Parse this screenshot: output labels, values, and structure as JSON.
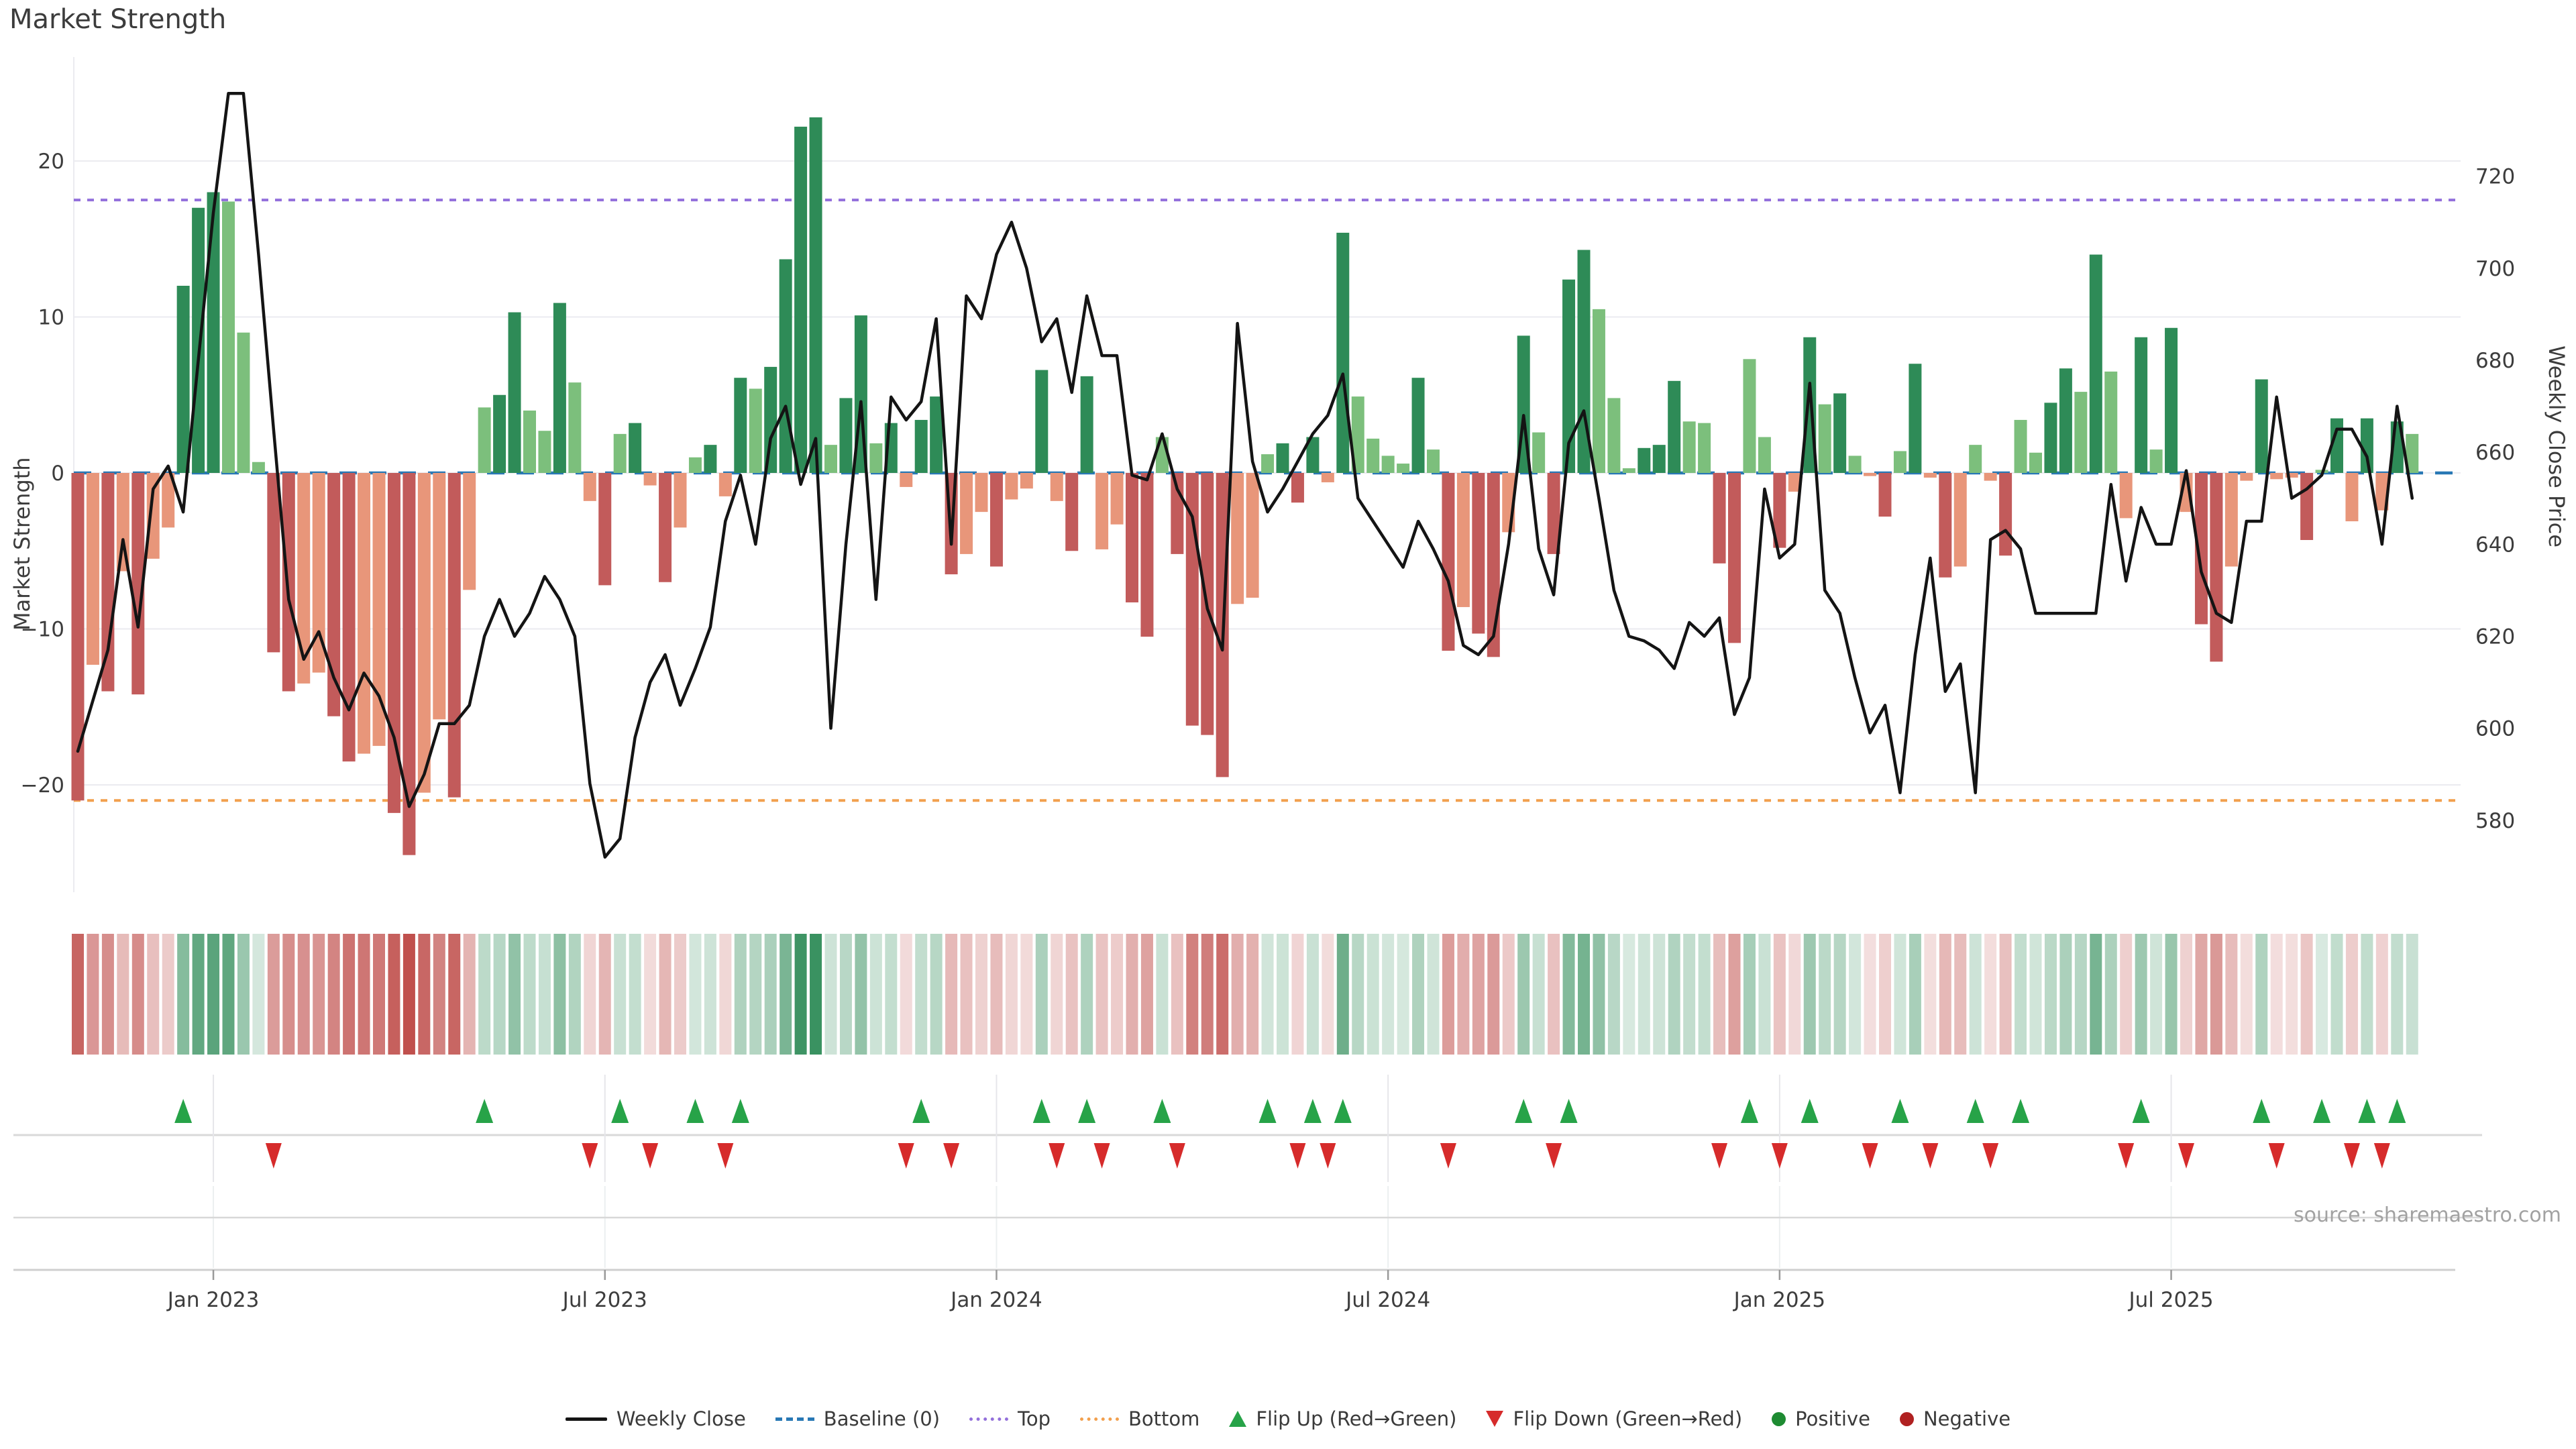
{
  "title": "Market Strength",
  "source_note": "source: sharemaestro.com",
  "axes": {
    "left": {
      "label": "Market Strength",
      "ticks": [
        20,
        10,
        0,
        -10,
        -20
      ]
    },
    "right": {
      "label": "Weekly Close Price",
      "ticks": [
        720,
        700,
        680,
        660,
        640,
        620,
        600,
        580
      ]
    },
    "x": {
      "tick_labels": [
        "Jan 2023",
        "Jul 2023",
        "Jan 2024",
        "Jul 2024",
        "Jan 2025",
        "Jul 2025"
      ],
      "tick_weeks": [
        9,
        35,
        61,
        87,
        113,
        139
      ]
    }
  },
  "legend": [
    {
      "label": "Weekly Close",
      "marker": "line",
      "color": "#141414"
    },
    {
      "label": "Baseline (0)",
      "marker": "dashed-line",
      "color": "#2878b5"
    },
    {
      "label": "Top",
      "marker": "dotted-line",
      "color": "#9370db"
    },
    {
      "label": "Bottom",
      "marker": "dotted-line",
      "color": "#f2a04e"
    },
    {
      "label": "Flip Up (Red→Green)",
      "marker": "triangle-up",
      "color": "#27a348"
    },
    {
      "label": "Flip Down (Green→Red)",
      "marker": "triangle-down",
      "color": "#d62b2b"
    },
    {
      "label": "Positive",
      "marker": "circle",
      "color": "#1e8b32"
    },
    {
      "label": "Negative",
      "marker": "circle",
      "color": "#b02121"
    }
  ],
  "chart_data": {
    "type": "bar+line",
    "description": "Weekly market strength bars (left axis) with weekly close price line (right axis), heatmap strip and red/green flip markers",
    "weeks": 156,
    "baseline": 0,
    "top_threshold": 17.5,
    "bottom_threshold": -21,
    "left_ylim": [
      -27,
      27
    ],
    "right_ylim": [
      564,
      747
    ],
    "grid": "horizontal-only",
    "market_strength": [
      -21.0,
      -12.3,
      -14.0,
      -6.3,
      -14.2,
      -5.5,
      -3.5,
      12.0,
      17.0,
      18.0,
      17.4,
      9.0,
      0.7,
      -11.5,
      -14.0,
      -13.5,
      -12.8,
      -15.6,
      -18.5,
      -18.0,
      -17.5,
      -21.8,
      -24.5,
      -20.5,
      -15.8,
      -20.8,
      -7.5,
      4.2,
      5.0,
      10.3,
      4.0,
      2.7,
      10.9,
      5.8,
      -1.8,
      -7.2,
      2.5,
      3.2,
      -0.8,
      -7.0,
      -3.5,
      1.0,
      1.8,
      -1.5,
      6.1,
      5.4,
      6.8,
      13.7,
      22.2,
      22.8,
      1.8,
      4.8,
      10.1,
      1.9,
      3.2,
      -0.9,
      3.4,
      4.9,
      -6.5,
      -5.2,
      -2.5,
      -6.0,
      -1.7,
      -1.0,
      6.6,
      -1.8,
      -5.0,
      6.2,
      -4.9,
      -3.3,
      -8.3,
      -10.5,
      2.3,
      -5.2,
      -16.2,
      -16.8,
      -19.5,
      -8.4,
      -8.0,
      1.2,
      1.9,
      -1.9,
      2.3,
      -0.6,
      15.4,
      4.9,
      2.2,
      1.1,
      0.6,
      6.1,
      1.5,
      -11.4,
      -8.6,
      -10.3,
      -11.8,
      -3.8,
      8.8,
      2.6,
      -5.2,
      12.4,
      14.3,
      10.5,
      4.8,
      0.3,
      1.6,
      1.8,
      5.9,
      3.3,
      3.2,
      -5.8,
      -10.9,
      7.3,
      2.3,
      -4.8,
      -1.2,
      8.7,
      4.4,
      5.1,
      1.1,
      -0.2,
      -2.8,
      1.4,
      7.0,
      -0.3,
      -6.7,
      -6.0,
      1.8,
      -0.5,
      -5.3,
      3.4,
      1.3,
      4.5,
      6.7,
      5.2,
      14.0,
      6.5,
      -2.9,
      8.7,
      1.5,
      9.3,
      -2.5,
      -9.7,
      -12.1,
      -6.0,
      -0.5,
      6.0,
      -0.4,
      -0.3,
      -4.3,
      0.2,
      3.5,
      -3.1,
      3.5,
      -2.4,
      3.3,
      2.5
    ],
    "weekly_close": [
      595,
      606,
      617,
      641,
      622,
      652,
      657,
      647,
      680,
      712,
      738,
      738,
      703,
      665,
      628,
      615,
      621,
      611,
      604,
      612,
      607,
      598,
      583,
      590,
      601,
      601,
      605,
      620,
      628,
      620,
      625,
      633,
      628,
      620,
      588,
      572,
      576,
      598,
      610,
      616,
      605,
      613,
      622,
      645,
      655,
      640,
      663,
      670,
      653,
      663,
      600,
      640,
      671,
      628,
      672,
      667,
      671,
      689,
      640,
      694,
      689,
      703,
      710,
      700,
      684,
      689,
      673,
      694,
      681,
      681,
      655,
      654,
      664,
      652,
      646,
      626,
      617,
      688,
      658,
      647,
      652,
      658,
      664,
      668,
      677,
      650,
      645,
      640,
      635,
      645,
      639,
      632,
      618,
      616,
      620,
      640,
      668,
      639,
      629,
      662,
      669,
      650,
      630,
      620,
      619,
      617,
      613,
      623,
      620,
      624,
      603,
      611,
      652,
      637,
      640,
      675,
      630,
      625,
      611,
      599,
      605,
      586,
      616,
      637,
      608,
      614,
      586,
      641,
      643,
      639,
      625,
      625,
      625,
      625,
      625,
      653,
      632,
      648,
      640,
      640,
      656,
      634,
      625,
      623,
      645,
      645,
      672,
      650,
      652,
      655,
      665,
      665,
      659,
      640,
      670,
      650
    ],
    "bar_shade_rule": "dark when |value| >= |previous value|, light when momentum fades",
    "flip_rule": "flip-up marker when bar turns negative->positive, flip-down when positive->negative",
    "colors": {
      "positive_dark": "#2e8b57",
      "positive_light": "#7cbf7c",
      "negative_dark": "#c25b5b",
      "negative_light": "#e8967a",
      "line": "#141414",
      "baseline": "#2878b5",
      "top": "#9370db",
      "bottom": "#f2a04e",
      "flip_up": "#27a348",
      "flip_down": "#d62b2b",
      "grid": "#ebebf0",
      "axis_text": "#3c3c3c"
    }
  }
}
